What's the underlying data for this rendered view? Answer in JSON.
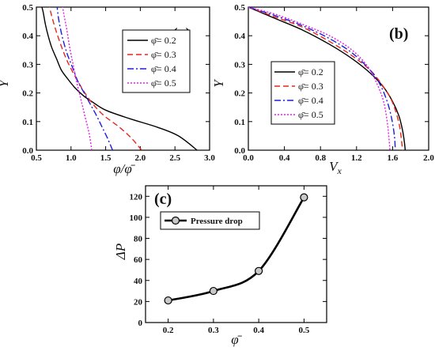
{
  "chart_data": [
    {
      "panel": "(a)",
      "type": "line",
      "xlabel": "φ/φ̄",
      "ylabel": "Y",
      "xlim": [
        0.5,
        3.0
      ],
      "ylim": [
        0.0,
        0.5
      ],
      "xticks": [
        "0.5",
        "1.0",
        "1.5",
        "2.0",
        "2.5",
        "3.0"
      ],
      "yticks": [
        "0.0",
        "0.1",
        "0.2",
        "0.3",
        "0.4",
        "0.5"
      ],
      "legend_position": "right",
      "series": [
        {
          "name": "φ̄= 0.2",
          "color": "#000000",
          "dash": "solid",
          "x": [
            2.82,
            2.55,
            2.25,
            1.85,
            1.5,
            1.3,
            1.18,
            1.05,
            0.95,
            0.86,
            0.79,
            0.72,
            0.67,
            0.63,
            0.6,
            0.58
          ],
          "y": [
            0.0,
            0.05,
            0.08,
            0.11,
            0.14,
            0.17,
            0.19,
            0.22,
            0.25,
            0.28,
            0.32,
            0.36,
            0.4,
            0.44,
            0.48,
            0.5
          ]
        },
        {
          "name": "φ̄= 0.3",
          "color": "#e8241c",
          "dash": "7,4",
          "x": [
            2.02,
            1.88,
            1.7,
            1.48,
            1.32,
            1.2,
            1.1,
            1.01,
            0.93,
            0.85,
            0.78,
            0.72,
            0.69
          ],
          "y": [
            0.0,
            0.04,
            0.08,
            0.12,
            0.16,
            0.2,
            0.24,
            0.28,
            0.32,
            0.37,
            0.42,
            0.47,
            0.5
          ]
        },
        {
          "name": "φ̄= 0.4",
          "color": "#1d1de0",
          "dash": "8,3,2,3",
          "x": [
            1.6,
            1.53,
            1.45,
            1.37,
            1.28,
            1.19,
            1.1,
            1.02,
            0.94,
            0.87,
            0.82,
            0.8
          ],
          "y": [
            0.0,
            0.04,
            0.08,
            0.12,
            0.16,
            0.2,
            0.24,
            0.29,
            0.34,
            0.4,
            0.46,
            0.5
          ]
        },
        {
          "name": "φ̄= 0.5",
          "color": "#e020e0",
          "dash": "2,2",
          "x": [
            1.3,
            1.26,
            1.2,
            1.14,
            1.08,
            1.03,
            0.98,
            0.94,
            0.9,
            0.88
          ],
          "y": [
            0.0,
            0.06,
            0.12,
            0.18,
            0.24,
            0.3,
            0.36,
            0.42,
            0.47,
            0.5
          ]
        }
      ]
    },
    {
      "panel": "(b)",
      "type": "line",
      "xlabel": "V",
      "xlabel_sub": "x",
      "ylabel": "Y",
      "xlim": [
        0.0,
        2.0
      ],
      "ylim": [
        0.0,
        0.5
      ],
      "xticks": [
        "0.0",
        "0.4",
        "0.8",
        "1.2",
        "1.6",
        "2.0"
      ],
      "yticks": [
        "0.0",
        "0.1",
        "0.2",
        "0.3",
        "0.4",
        "0.5"
      ],
      "legend_position": "bottom-left",
      "series": [
        {
          "name": "φ̄= 0.2",
          "color": "#000000",
          "dash": "solid",
          "x": [
            0.0,
            0.3,
            0.6,
            0.9,
            1.15,
            1.35,
            1.5,
            1.6,
            1.67,
            1.71,
            1.73,
            1.74
          ],
          "y": [
            0.5,
            0.46,
            0.42,
            0.37,
            0.32,
            0.27,
            0.22,
            0.17,
            0.12,
            0.07,
            0.03,
            0.0
          ]
        },
        {
          "name": "φ̄= 0.3",
          "color": "#e8241c",
          "dash": "7,4",
          "x": [
            0.0,
            0.3,
            0.6,
            0.9,
            1.15,
            1.35,
            1.48,
            1.58,
            1.64,
            1.68,
            1.7,
            1.71
          ],
          "y": [
            0.5,
            0.465,
            0.43,
            0.38,
            0.33,
            0.28,
            0.23,
            0.18,
            0.13,
            0.08,
            0.03,
            0.0
          ]
        },
        {
          "name": "φ̄= 0.4",
          "color": "#1d1de0",
          "dash": "8,3,2,3",
          "x": [
            0.0,
            0.3,
            0.6,
            0.9,
            1.15,
            1.35,
            1.46,
            1.54,
            1.59,
            1.62,
            1.63
          ],
          "y": [
            0.5,
            0.47,
            0.435,
            0.39,
            0.34,
            0.28,
            0.23,
            0.17,
            0.11,
            0.05,
            0.0
          ]
        },
        {
          "name": "φ̄= 0.5",
          "color": "#e020e0",
          "dash": "2,2",
          "x": [
            0.0,
            0.3,
            0.6,
            0.9,
            1.15,
            1.33,
            1.43,
            1.5,
            1.54,
            1.56,
            1.57
          ],
          "y": [
            0.5,
            0.475,
            0.44,
            0.4,
            0.35,
            0.29,
            0.23,
            0.17,
            0.1,
            0.04,
            0.0
          ]
        }
      ]
    },
    {
      "panel": "(c)",
      "type": "line",
      "xlabel": "φ̄",
      "ylabel": "ΔP",
      "xlim": [
        0.15,
        0.55
      ],
      "ylim": [
        0,
        130
      ],
      "xticks": [
        "0.2",
        "0.3",
        "0.4",
        "0.5"
      ],
      "yticks": [
        "0",
        "20",
        "40",
        "60",
        "80",
        "100",
        "120"
      ],
      "legend_position": "top-left",
      "series": [
        {
          "name": "Pressure drop",
          "color": "#000000",
          "marker": "circle",
          "x": [
            0.2,
            0.3,
            0.4,
            0.5
          ],
          "y": [
            21,
            30,
            49,
            119
          ]
        }
      ]
    }
  ]
}
